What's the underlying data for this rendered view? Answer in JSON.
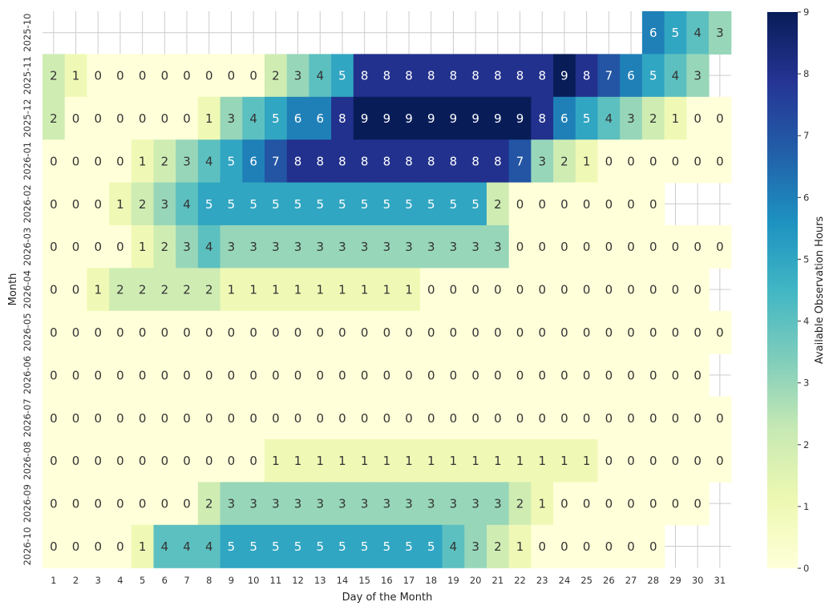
{
  "chart_data": {
    "type": "heatmap",
    "title": "",
    "xlabel": "Day of the Month",
    "ylabel": "Month",
    "colorbar_label": "Available Observation Hours",
    "colormap": "YlGnBu",
    "value_range": [
      0,
      9
    ],
    "colorbar_ticks": [
      "0",
      "1",
      "2",
      "3",
      "4",
      "5",
      "6",
      "7",
      "8",
      "9"
    ],
    "grid": true,
    "x_categories": [
      "1",
      "2",
      "3",
      "4",
      "5",
      "6",
      "7",
      "8",
      "9",
      "10",
      "11",
      "12",
      "13",
      "14",
      "15",
      "16",
      "17",
      "18",
      "19",
      "20",
      "21",
      "22",
      "23",
      "24",
      "25",
      "26",
      "27",
      "28",
      "29",
      "30",
      "31"
    ],
    "y_categories": [
      "2025-10",
      "2025-11",
      "2025-12",
      "2026-01",
      "2026-02",
      "2026-03",
      "2026-04",
      "2026-05",
      "2026-06",
      "2026-07",
      "2026-08",
      "2026-09",
      "2026-10"
    ],
    "values": [
      [
        null,
        null,
        null,
        null,
        null,
        null,
        null,
        null,
        null,
        null,
        null,
        null,
        null,
        null,
        null,
        null,
        null,
        null,
        null,
        null,
        null,
        null,
        null,
        null,
        null,
        null,
        null,
        6,
        5,
        4,
        3
      ],
      [
        2,
        1,
        0,
        0,
        0,
        0,
        0,
        0,
        0,
        0,
        2,
        3,
        4,
        5,
        8,
        8,
        8,
        8,
        8,
        8,
        8,
        8,
        8,
        9,
        8,
        7,
        6,
        5,
        4,
        3,
        null
      ],
      [
        2,
        0,
        0,
        0,
        0,
        0,
        0,
        1,
        3,
        4,
        5,
        6,
        6,
        8,
        9,
        9,
        9,
        9,
        9,
        9,
        9,
        9,
        8,
        6,
        5,
        4,
        3,
        2,
        1,
        0,
        0
      ],
      [
        0,
        0,
        0,
        0,
        1,
        2,
        3,
        4,
        5,
        6,
        7,
        8,
        8,
        8,
        8,
        8,
        8,
        8,
        8,
        8,
        8,
        7,
        3,
        2,
        1,
        0,
        0,
        0,
        0,
        0,
        0
      ],
      [
        0,
        0,
        0,
        1,
        2,
        3,
        4,
        5,
        5,
        5,
        5,
        5,
        5,
        5,
        5,
        5,
        5,
        5,
        5,
        5,
        2,
        0,
        0,
        0,
        0,
        0,
        0,
        0,
        null,
        null,
        null
      ],
      [
        0,
        0,
        0,
        0,
        1,
        2,
        3,
        4,
        3,
        3,
        3,
        3,
        3,
        3,
        3,
        3,
        3,
        3,
        3,
        3,
        3,
        0,
        0,
        0,
        0,
        0,
        0,
        0,
        0,
        0,
        0
      ],
      [
        0,
        0,
        1,
        2,
        2,
        2,
        2,
        2,
        1,
        1,
        1,
        1,
        1,
        1,
        1,
        1,
        1,
        0,
        0,
        0,
        0,
        0,
        0,
        0,
        0,
        0,
        0,
        0,
        0,
        0,
        null
      ],
      [
        0,
        0,
        0,
        0,
        0,
        0,
        0,
        0,
        0,
        0,
        0,
        0,
        0,
        0,
        0,
        0,
        0,
        0,
        0,
        0,
        0,
        0,
        0,
        0,
        0,
        0,
        0,
        0,
        0,
        0,
        0
      ],
      [
        0,
        0,
        0,
        0,
        0,
        0,
        0,
        0,
        0,
        0,
        0,
        0,
        0,
        0,
        0,
        0,
        0,
        0,
        0,
        0,
        0,
        0,
        0,
        0,
        0,
        0,
        0,
        0,
        0,
        0,
        null
      ],
      [
        0,
        0,
        0,
        0,
        0,
        0,
        0,
        0,
        0,
        0,
        0,
        0,
        0,
        0,
        0,
        0,
        0,
        0,
        0,
        0,
        0,
        0,
        0,
        0,
        0,
        0,
        0,
        0,
        0,
        0,
        0
      ],
      [
        0,
        0,
        0,
        0,
        0,
        0,
        0,
        0,
        0,
        0,
        1,
        1,
        1,
        1,
        1,
        1,
        1,
        1,
        1,
        1,
        1,
        1,
        1,
        1,
        1,
        0,
        0,
        0,
        0,
        0,
        0
      ],
      [
        0,
        0,
        0,
        0,
        0,
        0,
        0,
        2,
        3,
        3,
        3,
        3,
        3,
        3,
        3,
        3,
        3,
        3,
        3,
        3,
        3,
        2,
        1,
        0,
        0,
        0,
        0,
        0,
        0,
        0,
        null
      ],
      [
        0,
        0,
        0,
        0,
        1,
        4,
        4,
        4,
        5,
        5,
        5,
        5,
        5,
        5,
        5,
        5,
        5,
        5,
        4,
        3,
        2,
        1,
        0,
        0,
        0,
        0,
        0,
        0,
        null,
        null,
        null
      ]
    ]
  }
}
